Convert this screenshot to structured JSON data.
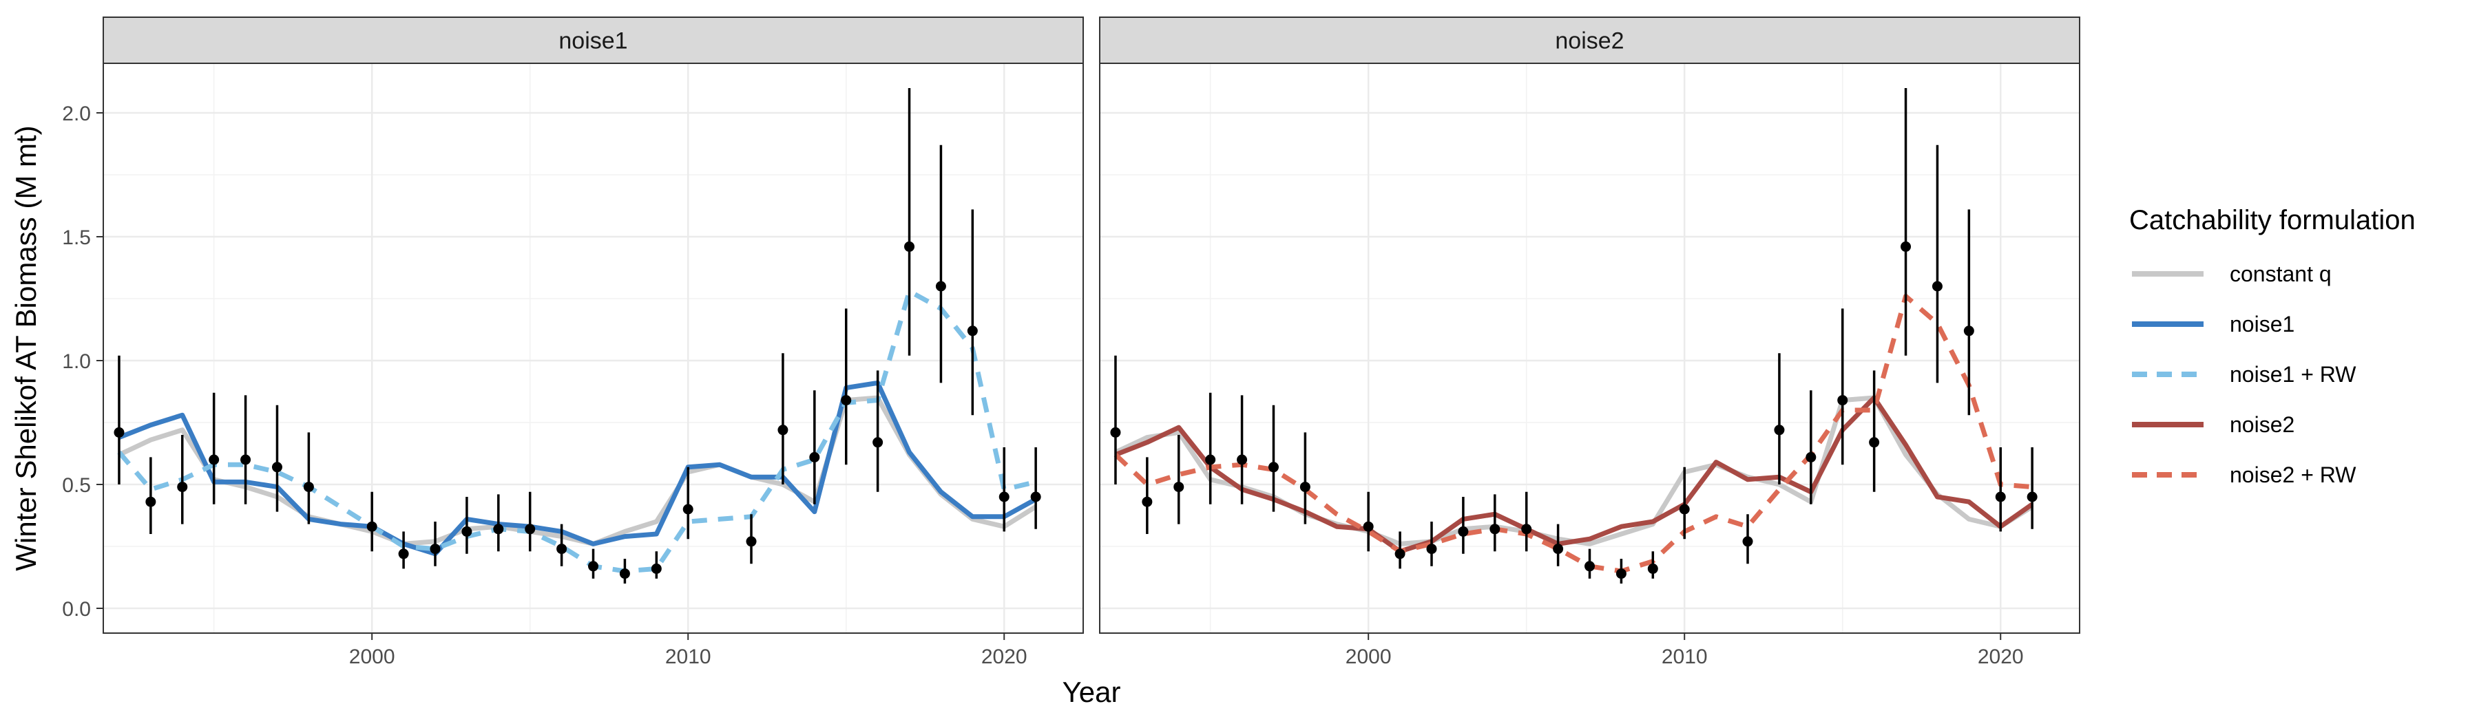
{
  "chart_data": {
    "type": "line",
    "xlabel": "Year",
    "ylabel": "Winter Shelikof AT Biomass (M mt)",
    "xlim": [
      1991.5,
      2022.5
    ],
    "ylim": [
      -0.1,
      2.2
    ],
    "x_ticks": [
      2000,
      2010,
      2020
    ],
    "y_ticks": [
      0.0,
      0.5,
      1.0,
      1.5,
      2.0
    ],
    "y_tick_labels": [
      "0.0",
      "0.5",
      "1.0",
      "1.5",
      "2.0"
    ],
    "grid": true,
    "legend": {
      "title": "Catchability formulation",
      "position": "right",
      "entries": [
        {
          "label": "constant q",
          "color": "#c8c8c8",
          "dash": "solid"
        },
        {
          "label": "noise1",
          "color": "#3a7dc4",
          "dash": "solid"
        },
        {
          "label": "noise1 + RW",
          "color": "#7ec0e6",
          "dash": "dashed"
        },
        {
          "label": "noise2",
          "color": "#a84a44",
          "dash": "solid"
        },
        {
          "label": "noise2 + RW",
          "color": "#dd6b55",
          "dash": "dashed"
        }
      ]
    },
    "observations": {
      "years": [
        1992,
        1993,
        1994,
        1995,
        1996,
        1997,
        1998,
        2000,
        2001,
        2002,
        2003,
        2004,
        2005,
        2006,
        2007,
        2008,
        2009,
        2010,
        2012,
        2013,
        2014,
        2015,
        2016,
        2017,
        2018,
        2019,
        2020,
        2021
      ],
      "values": [
        0.71,
        0.43,
        0.49,
        0.6,
        0.6,
        0.57,
        0.49,
        0.33,
        0.22,
        0.24,
        0.31,
        0.32,
        0.32,
        0.24,
        0.17,
        0.14,
        0.16,
        0.4,
        0.27,
        0.72,
        0.61,
        0.84,
        0.67,
        1.46,
        1.3,
        1.12,
        0.45,
        0.45
      ],
      "lower": [
        0.5,
        0.3,
        0.34,
        0.42,
        0.42,
        0.39,
        0.34,
        0.23,
        0.16,
        0.17,
        0.22,
        0.23,
        0.23,
        0.17,
        0.12,
        0.1,
        0.12,
        0.28,
        0.18,
        0.5,
        0.42,
        0.58,
        0.47,
        1.02,
        0.91,
        0.78,
        0.31,
        0.32
      ],
      "upper": [
        1.02,
        0.61,
        0.7,
        0.87,
        0.86,
        0.82,
        0.71,
        0.47,
        0.31,
        0.35,
        0.45,
        0.46,
        0.47,
        0.34,
        0.24,
        0.2,
        0.23,
        0.57,
        0.38,
        1.03,
        0.88,
        1.21,
        0.96,
        2.1,
        1.87,
        1.61,
        0.65,
        0.65
      ]
    },
    "panels": [
      {
        "strip": "noise1",
        "series": [
          {
            "name": "constant q",
            "color": "#c8c8c8",
            "dash": "solid",
            "x": [
              1992,
              1993,
              1994,
              1995,
              1996,
              1997,
              1998,
              1999,
              2000,
              2001,
              2002,
              2003,
              2004,
              2005,
              2006,
              2007,
              2008,
              2009,
              2010,
              2011,
              2012,
              2013,
              2014,
              2015,
              2016,
              2017,
              2018,
              2019,
              2020,
              2021
            ],
            "y": [
              0.62,
              0.68,
              0.72,
              0.52,
              0.49,
              0.45,
              0.37,
              0.34,
              0.31,
              0.26,
              0.27,
              0.32,
              0.33,
              0.31,
              0.29,
              0.26,
              0.31,
              0.35,
              0.55,
              0.58,
              0.53,
              0.5,
              0.43,
              0.84,
              0.85,
              0.62,
              0.46,
              0.36,
              0.33,
              0.41
            ]
          },
          {
            "name": "noise1",
            "color": "#3a7dc4",
            "dash": "solid",
            "x": [
              1992,
              1993,
              1994,
              1995,
              1996,
              1997,
              1998,
              1999,
              2000,
              2001,
              2002,
              2003,
              2004,
              2005,
              2006,
              2007,
              2008,
              2009,
              2010,
              2011,
              2012,
              2013,
              2014,
              2015,
              2016,
              2017,
              2018,
              2019,
              2020,
              2021
            ],
            "y": [
              0.69,
              0.74,
              0.78,
              0.51,
              0.51,
              0.49,
              0.36,
              0.34,
              0.33,
              0.26,
              0.22,
              0.36,
              0.34,
              0.33,
              0.31,
              0.26,
              0.29,
              0.3,
              0.57,
              0.58,
              0.53,
              0.53,
              0.39,
              0.89,
              0.91,
              0.63,
              0.47,
              0.37,
              0.37,
              0.44
            ]
          },
          {
            "name": "noise1 + RW",
            "color": "#7ec0e6",
            "dash": "dashed",
            "x": [
              1992,
              1993,
              1994,
              1995,
              1996,
              1997,
              1998,
              1999,
              2000,
              2001,
              2002,
              2003,
              2004,
              2005,
              2006,
              2007,
              2008,
              2009,
              2010,
              2011,
              2012,
              2013,
              2014,
              2015,
              2016,
              2017,
              2018,
              2019,
              2020,
              2021
            ],
            "y": [
              0.63,
              0.48,
              0.52,
              0.58,
              0.58,
              0.55,
              0.49,
              0.41,
              0.33,
              0.25,
              0.24,
              0.29,
              0.32,
              0.31,
              0.25,
              0.17,
              0.15,
              0.16,
              0.35,
              0.36,
              0.37,
              0.56,
              0.6,
              0.83,
              0.84,
              1.28,
              1.21,
              1.05,
              0.48,
              0.51
            ]
          }
        ]
      },
      {
        "strip": "noise2",
        "series": [
          {
            "name": "constant q",
            "color": "#c8c8c8",
            "dash": "solid",
            "x": [
              1992,
              1993,
              1994,
              1995,
              1996,
              1997,
              1998,
              1999,
              2000,
              2001,
              2002,
              2003,
              2004,
              2005,
              2006,
              2007,
              2008,
              2009,
              2010,
              2011,
              2012,
              2013,
              2014,
              2015,
              2016,
              2017,
              2018,
              2019,
              2020,
              2021
            ],
            "y": [
              0.63,
              0.69,
              0.71,
              0.52,
              0.49,
              0.45,
              0.38,
              0.34,
              0.31,
              0.26,
              0.27,
              0.32,
              0.33,
              0.31,
              0.28,
              0.26,
              0.3,
              0.34,
              0.55,
              0.58,
              0.53,
              0.5,
              0.43,
              0.84,
              0.85,
              0.62,
              0.46,
              0.36,
              0.33,
              0.41
            ]
          },
          {
            "name": "noise2",
            "color": "#a84a44",
            "dash": "solid",
            "x": [
              1992,
              1993,
              1994,
              1995,
              1996,
              1997,
              1998,
              1999,
              2000,
              2001,
              2002,
              2003,
              2004,
              2005,
              2006,
              2007,
              2008,
              2009,
              2010,
              2011,
              2012,
              2013,
              2014,
              2015,
              2016,
              2017,
              2018,
              2019,
              2020,
              2021
            ],
            "y": [
              0.62,
              0.67,
              0.73,
              0.57,
              0.48,
              0.44,
              0.39,
              0.33,
              0.32,
              0.23,
              0.27,
              0.36,
              0.38,
              0.32,
              0.26,
              0.28,
              0.33,
              0.35,
              0.42,
              0.59,
              0.52,
              0.53,
              0.47,
              0.72,
              0.85,
              0.66,
              0.45,
              0.43,
              0.33,
              0.42
            ]
          },
          {
            "name": "noise2 + RW",
            "color": "#dd6b55",
            "dash": "dashed",
            "x": [
              1992,
              1993,
              1994,
              1995,
              1996,
              1997,
              1998,
              1999,
              2000,
              2001,
              2002,
              2003,
              2004,
              2005,
              2006,
              2007,
              2008,
              2009,
              2010,
              2011,
              2012,
              2013,
              2014,
              2015,
              2016,
              2017,
              2018,
              2019,
              2020,
              2021
            ],
            "y": [
              0.62,
              0.5,
              0.54,
              0.57,
              0.58,
              0.56,
              0.48,
              0.38,
              0.31,
              0.23,
              0.26,
              0.3,
              0.32,
              0.3,
              0.24,
              0.17,
              0.15,
              0.19,
              0.31,
              0.37,
              0.33,
              0.48,
              0.62,
              0.8,
              0.8,
              1.26,
              1.15,
              0.9,
              0.5,
              0.49
            ]
          }
        ]
      }
    ]
  }
}
